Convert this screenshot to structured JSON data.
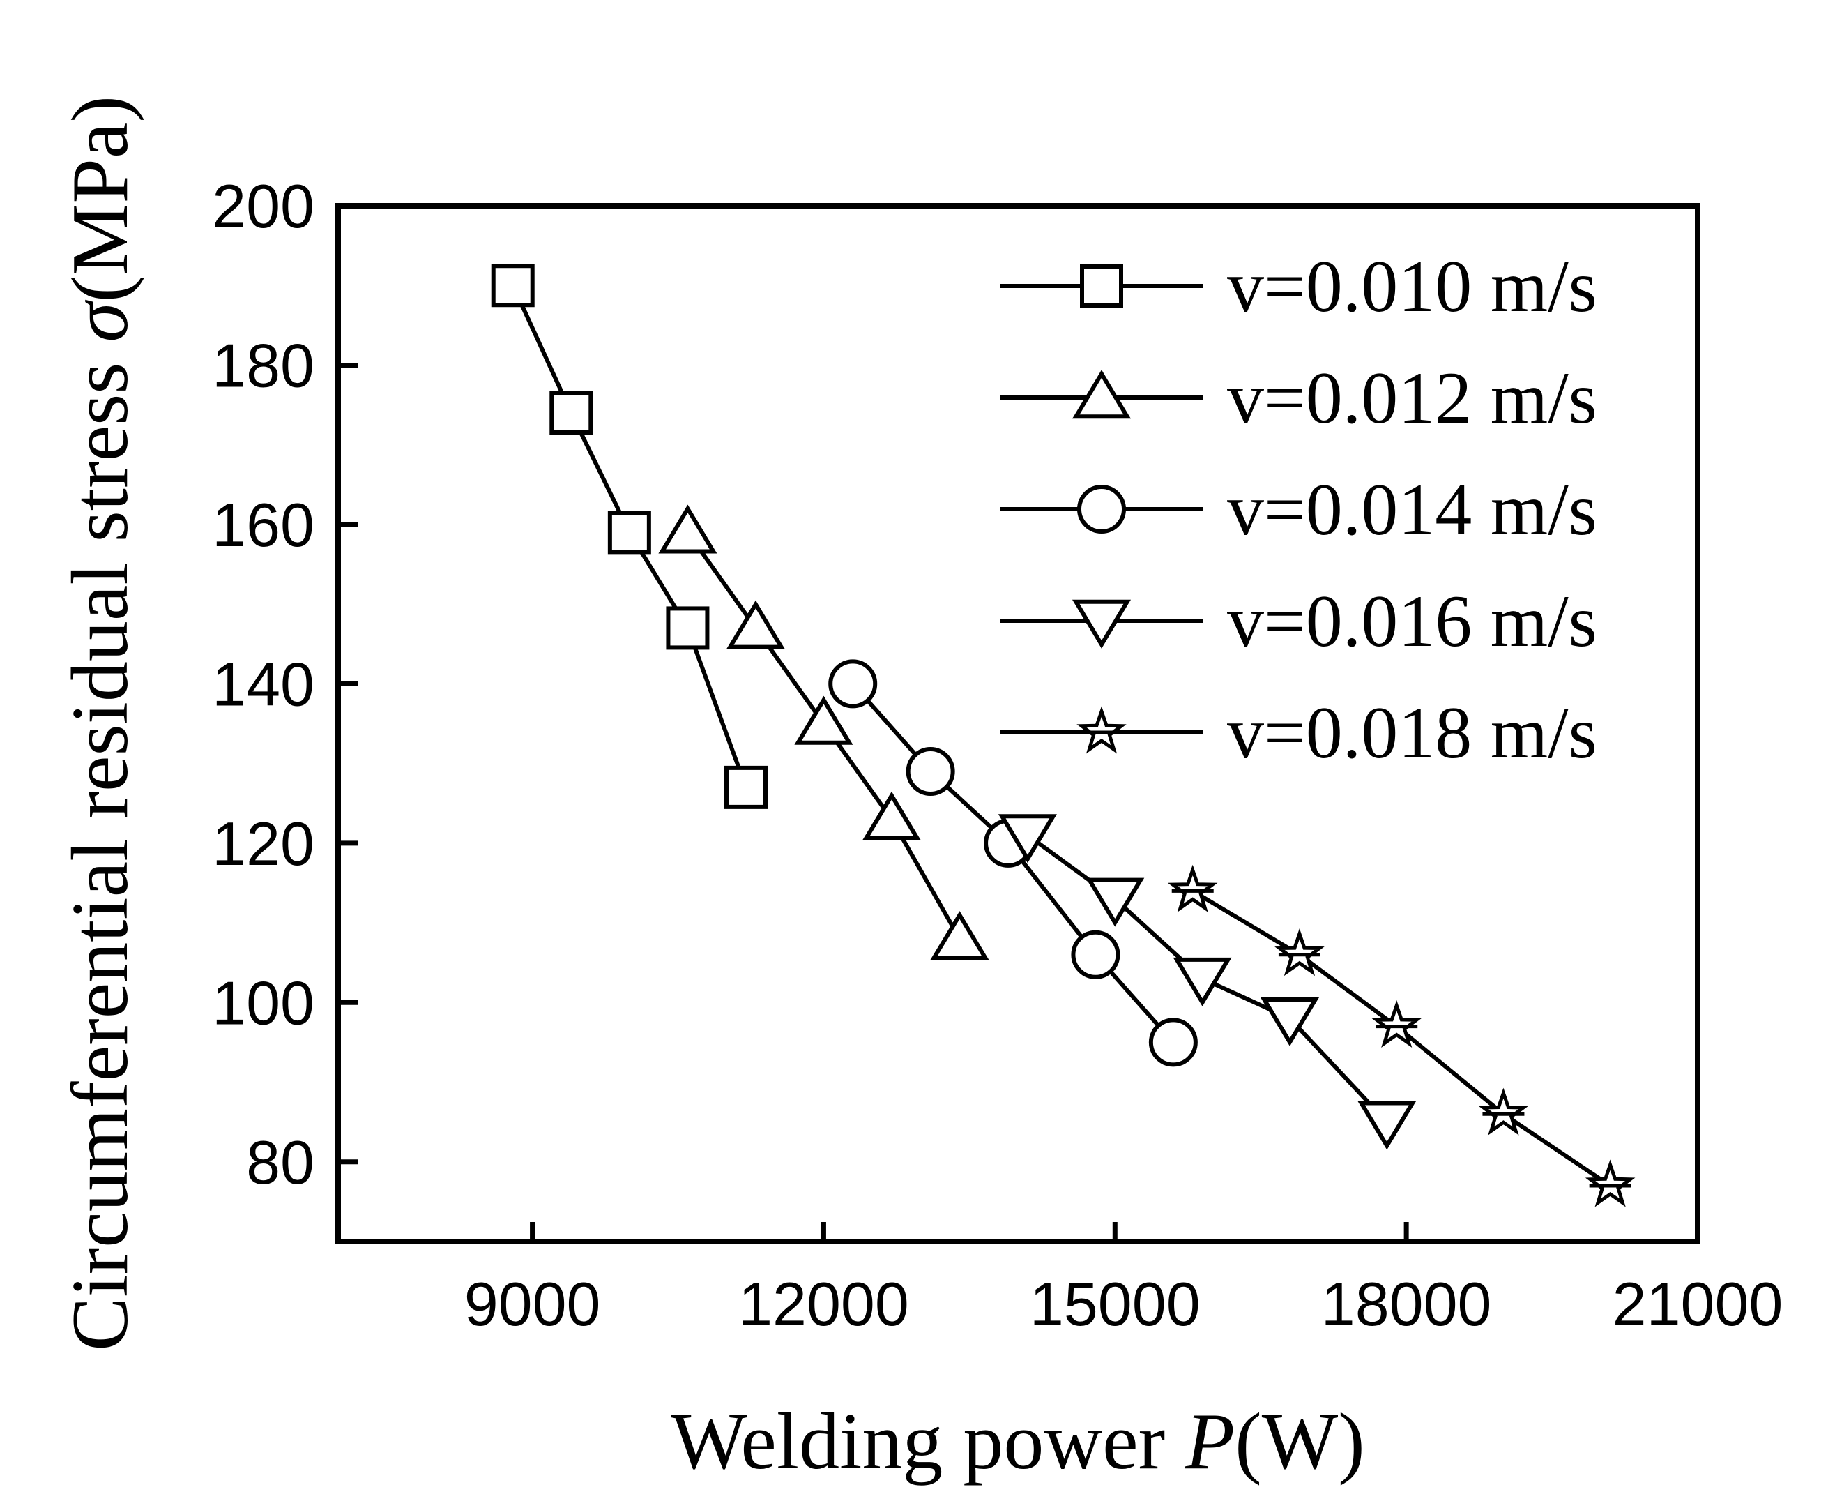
{
  "chart_data": {
    "type": "line",
    "title": "",
    "xlabel": {
      "prefix": "Welding power ",
      "symbol": "P",
      "unit": "(W)"
    },
    "ylabel": {
      "prefix": "Circumferential residual stress ",
      "symbol": "σ",
      "unit": "(MPa)"
    },
    "xlim": [
      7000,
      21000
    ],
    "ylim": [
      70,
      200
    ],
    "xticks": [
      9000,
      12000,
      15000,
      18000,
      21000
    ],
    "yticks": [
      80,
      100,
      120,
      140,
      160,
      180,
      200
    ],
    "xtick_labels": [
      "9000",
      "12000",
      "15000",
      "18000",
      "21000"
    ],
    "ytick_labels": [
      "80",
      "100",
      "120",
      "140",
      "160",
      "180",
      "200"
    ],
    "grid": false,
    "legend_position": "top-right",
    "series": [
      {
        "name": "v=0.010 m/s",
        "marker": "square",
        "x": [
          8800,
          9400,
          10000,
          10600,
          11200
        ],
        "y": [
          190,
          174,
          159,
          147,
          127
        ]
      },
      {
        "name": "v=0.012 m/s",
        "marker": "triangle-up",
        "x": [
          10600,
          11300,
          12000,
          12700,
          13400
        ],
        "y": [
          159,
          147,
          135,
          123,
          108
        ]
      },
      {
        "name": "v=0.014 m/s",
        "marker": "circle",
        "x": [
          12300,
          13100,
          13900,
          14800,
          15600
        ],
        "y": [
          140,
          129,
          120,
          106,
          95
        ]
      },
      {
        "name": "v=0.016 m/s",
        "marker": "triangle-down",
        "x": [
          14100,
          15000,
          15900,
          16800,
          17800
        ],
        "y": [
          121,
          113,
          103,
          98,
          85
        ]
      },
      {
        "name": "v=0.018 m/s",
        "marker": "star",
        "x": [
          15800,
          16900,
          17900,
          19000,
          20100
        ],
        "y": [
          114,
          106,
          97,
          86,
          77
        ]
      }
    ]
  }
}
